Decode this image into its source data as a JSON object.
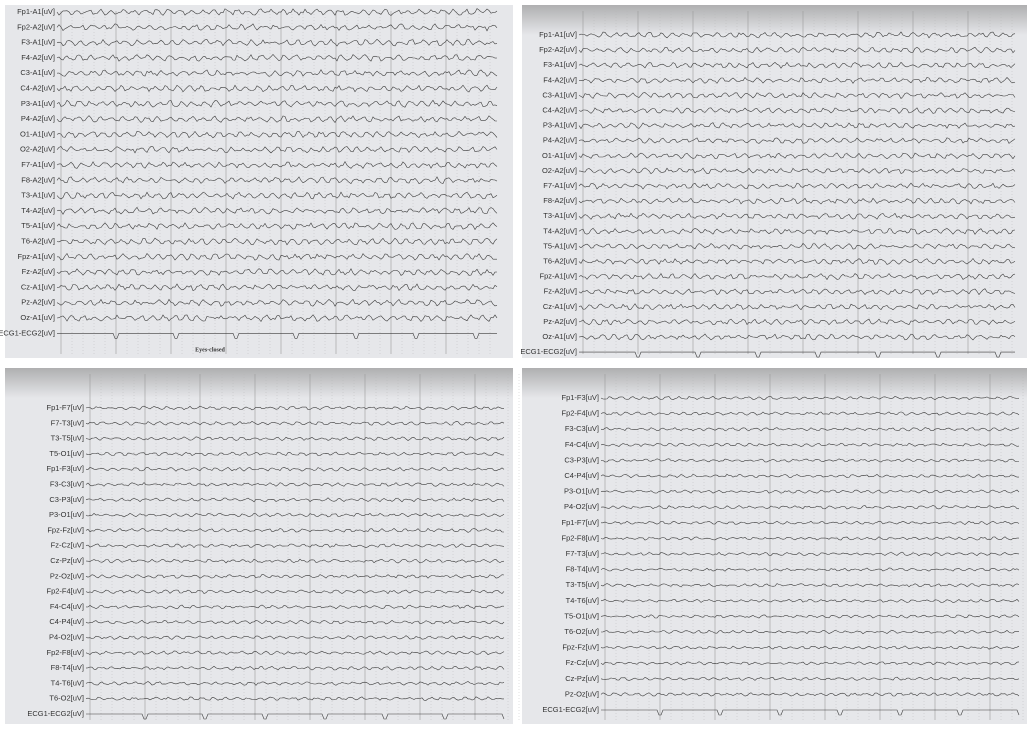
{
  "panels": [
    {
      "channels": [
        "Fp1-A1[uV]",
        "Fp2-A2[uV]",
        "F3-A1[uV]",
        "F4-A2[uV]",
        "C3-A1[uV]",
        "C4-A2[uV]",
        "P3-A1[uV]",
        "P4-A2[uV]",
        "O1-A1[uV]",
        "O2-A2[uV]",
        "F7-A1[uV]",
        "F8-A2[uV]",
        "T3-A1[uV]",
        "T4-A2[uV]",
        "T5-A1[uV]",
        "T6-A2[uV]",
        "Fpz-A1[uV]",
        "Fz-A2[uV]",
        "Cz-A1[uV]",
        "Pz-A2[uV]",
        "Oz-A1[uV]",
        "ECG1-ECG2[uV]"
      ],
      "annotation": "Eyes-closed"
    },
    {
      "channels": [
        "Fp1-A1[uV]",
        "Fp2-A2[uV]",
        "F3-A1[uV]",
        "F4-A2[uV]",
        "C3-A1[uV]",
        "C4-A2[uV]",
        "P3-A1[uV]",
        "P4-A2[uV]",
        "O1-A1[uV]",
        "O2-A2[uV]",
        "F7-A1[uV]",
        "F8-A2[uV]",
        "T3-A1[uV]",
        "T4-A2[uV]",
        "T5-A1[uV]",
        "T6-A2[uV]",
        "Fpz-A1[uV]",
        "Fz-A2[uV]",
        "Cz-A1[uV]",
        "Pz-A2[uV]",
        "Oz-A1[uV]",
        "ECG1-ECG2[uV]"
      ]
    },
    {
      "channels": [
        "Fp1-F7[uV]",
        "F7-T3[uV]",
        "T3-T5[uV]",
        "T5-O1[uV]",
        "Fp1-F3[uV]",
        "F3-C3[uV]",
        "C3-P3[uV]",
        "P3-O1[uV]",
        "Fpz-Fz[uV]",
        "Fz-Cz[uV]",
        "Cz-Pz[uV]",
        "Pz-Oz[uV]",
        "Fp2-F4[uV]",
        "F4-C4[uV]",
        "C4-P4[uV]",
        "P4-O2[uV]",
        "Fp2-F8[uV]",
        "F8-T4[uV]",
        "T4-T6[uV]",
        "T6-O2[uV]",
        "ECG1-ECG2[uV]"
      ]
    },
    {
      "channels": [
        "Fp1-F3[uV]",
        "Fp2-F4[uV]",
        "F3-C3[uV]",
        "F4-C4[uV]",
        "C3-P3[uV]",
        "C4-P4[uV]",
        "P3-O1[uV]",
        "P4-O2[uV]",
        "Fp1-F7[uV]",
        "Fp2-F8[uV]",
        "F7-T3[uV]",
        "F8-T4[uV]",
        "T3-T5[uV]",
        "T4-T6[uV]",
        "T5-O1[uV]",
        "T6-O2[uV]",
        "Fpz-Fz[uV]",
        "Fz-Cz[uV]",
        "Cz-Pz[uV]",
        "Pz-Oz[uV]",
        "ECG1-ECG2[uV]"
      ]
    }
  ]
}
